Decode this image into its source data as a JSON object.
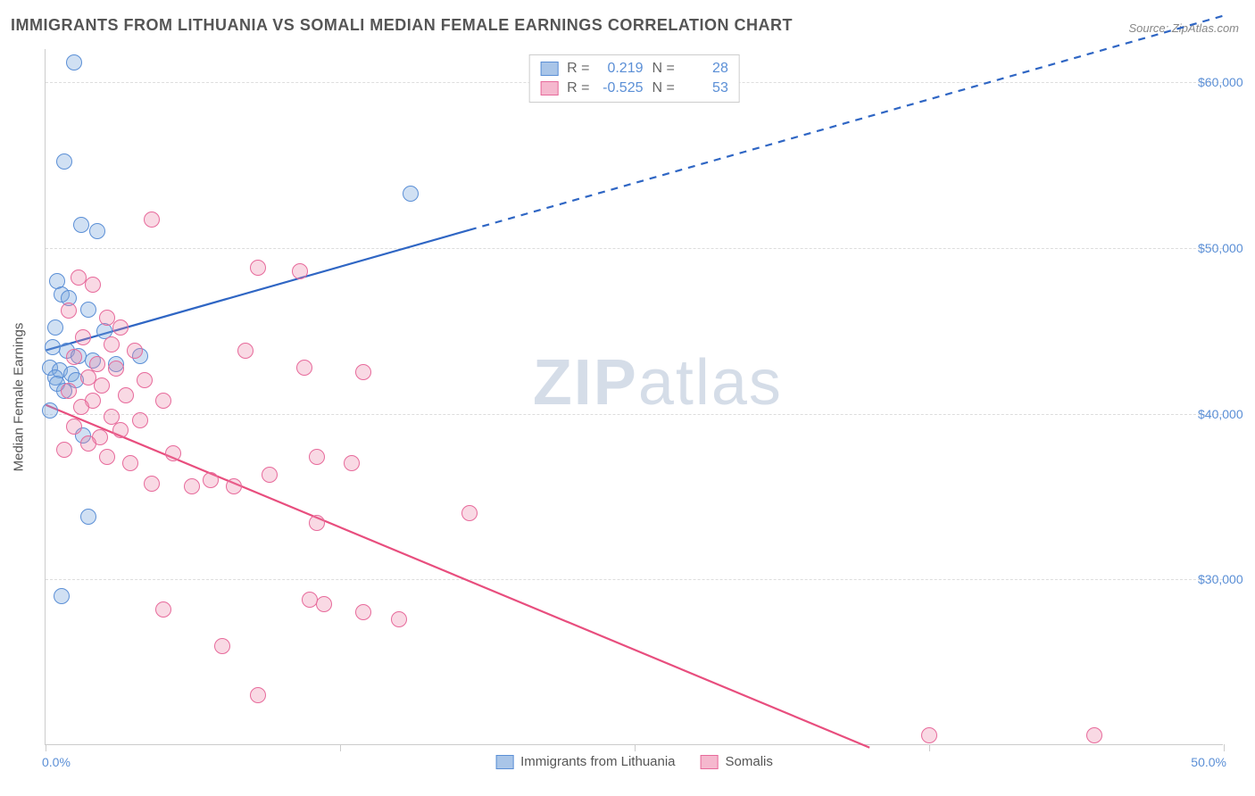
{
  "title": "IMMIGRANTS FROM LITHUANIA VS SOMALI MEDIAN FEMALE EARNINGS CORRELATION CHART",
  "source": "Source: ZipAtlas.com",
  "watermark_bold": "ZIP",
  "watermark_rest": "atlas",
  "y_axis_title": "Median Female Earnings",
  "chart": {
    "type": "scatter",
    "background_color": "#ffffff",
    "grid_color": "#dddddd",
    "axis_color": "#cccccc",
    "xlim": [
      0,
      50
    ],
    "ylim": [
      20000,
      62000
    ],
    "x_tick_positions": [
      0,
      12.5,
      25,
      37.5,
      50
    ],
    "x_min_label": "0.0%",
    "x_max_label": "50.0%",
    "y_ticks": [
      {
        "value": 30000,
        "label": "$30,000"
      },
      {
        "value": 40000,
        "label": "$40,000"
      },
      {
        "value": 50000,
        "label": "$50,000"
      },
      {
        "value": 60000,
        "label": "$60,000"
      }
    ],
    "y_tick_label_color": "#5b8fd6",
    "x_tick_label_color": "#5b8fd6",
    "marker_radius": 9,
    "marker_stroke_width": 1.2,
    "trend_line_width": 2.2,
    "series": [
      {
        "name": "Immigrants from Lithuania",
        "fill_color": "rgba(120,165,220,0.35)",
        "stroke_color": "#5b8fd6",
        "swatch_fill": "#a9c5e8",
        "swatch_border": "#5b8fd6",
        "trend_color": "#2f66c4",
        "r_value": "0.219",
        "n_value": "28",
        "trend": {
          "x1": 0,
          "y1": 43800,
          "x2": 50,
          "y2": 64000,
          "dash_from_x": 18
        },
        "points": [
          [
            1.2,
            61200
          ],
          [
            0.8,
            55200
          ],
          [
            1.5,
            51400
          ],
          [
            2.2,
            51000
          ],
          [
            0.5,
            48000
          ],
          [
            0.7,
            47200
          ],
          [
            1.0,
            47000
          ],
          [
            1.8,
            46300
          ],
          [
            0.4,
            45200
          ],
          [
            2.5,
            45000
          ],
          [
            0.3,
            44000
          ],
          [
            0.9,
            43800
          ],
          [
            1.4,
            43500
          ],
          [
            2.0,
            43200
          ],
          [
            3.0,
            43000
          ],
          [
            0.2,
            42800
          ],
          [
            0.6,
            42600
          ],
          [
            1.1,
            42400
          ],
          [
            0.4,
            42200
          ],
          [
            1.3,
            42000
          ],
          [
            0.5,
            41800
          ],
          [
            0.8,
            41400
          ],
          [
            4.0,
            43500
          ],
          [
            0.2,
            40200
          ],
          [
            1.6,
            38700
          ],
          [
            1.8,
            33800
          ],
          [
            0.7,
            29000
          ],
          [
            15.5,
            53300
          ]
        ]
      },
      {
        "name": "Somalis",
        "fill_color": "rgba(235,130,165,0.30)",
        "stroke_color": "#e76a9b",
        "swatch_fill": "#f5b8ce",
        "swatch_border": "#e76a9b",
        "trend_color": "#e84e7e",
        "r_value": "-0.525",
        "n_value": "53",
        "trend": {
          "x1": 0,
          "y1": 40500,
          "x2": 35,
          "y2": 19800,
          "dash_from_x": null
        },
        "points": [
          [
            4.5,
            51700
          ],
          [
            1.4,
            48200
          ],
          [
            2.0,
            47800
          ],
          [
            9.0,
            48800
          ],
          [
            10.8,
            48600
          ],
          [
            1.0,
            46200
          ],
          [
            2.6,
            45800
          ],
          [
            3.2,
            45200
          ],
          [
            1.6,
            44600
          ],
          [
            2.8,
            44200
          ],
          [
            3.8,
            43800
          ],
          [
            8.5,
            43800
          ],
          [
            1.2,
            43400
          ],
          [
            2.2,
            43000
          ],
          [
            3.0,
            42700
          ],
          [
            1.8,
            42200
          ],
          [
            4.2,
            42000
          ],
          [
            2.4,
            41700
          ],
          [
            1.0,
            41400
          ],
          [
            3.4,
            41100
          ],
          [
            2.0,
            40800
          ],
          [
            5.0,
            40800
          ],
          [
            1.5,
            40400
          ],
          [
            11.0,
            42800
          ],
          [
            13.5,
            42500
          ],
          [
            2.8,
            39800
          ],
          [
            4.0,
            39600
          ],
          [
            1.2,
            39200
          ],
          [
            3.2,
            39000
          ],
          [
            2.3,
            38600
          ],
          [
            1.8,
            38200
          ],
          [
            0.8,
            37800
          ],
          [
            2.6,
            37400
          ],
          [
            3.6,
            37000
          ],
          [
            5.4,
            37600
          ],
          [
            7.0,
            36000
          ],
          [
            9.5,
            36300
          ],
          [
            4.5,
            35800
          ],
          [
            6.2,
            35600
          ],
          [
            8.0,
            35600
          ],
          [
            11.5,
            37400
          ],
          [
            13.0,
            37000
          ],
          [
            18.0,
            34000
          ],
          [
            11.5,
            33400
          ],
          [
            5.0,
            28200
          ],
          [
            11.2,
            28800
          ],
          [
            11.8,
            28500
          ],
          [
            13.5,
            28000
          ],
          [
            15.0,
            27600
          ],
          [
            7.5,
            26000
          ],
          [
            9.0,
            23000
          ],
          [
            37.5,
            20600
          ],
          [
            44.5,
            20600
          ]
        ]
      }
    ]
  },
  "legend": {
    "item1": "Immigrants from Lithuania",
    "item2": "Somalis"
  },
  "stats_labels": {
    "r": "R =",
    "n": "N ="
  }
}
